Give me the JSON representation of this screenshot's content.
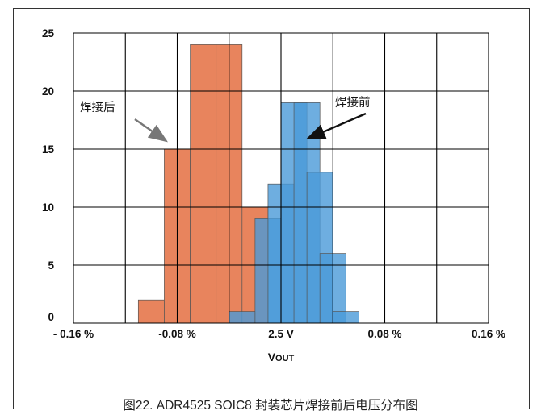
{
  "chart_data": {
    "type": "bar",
    "x_ticks": [
      "- 0.16 %",
      "-0.08 %",
      "2.5 V",
      "0.08 %",
      "0.16 %"
    ],
    "y_ticks": [
      "0",
      "5",
      "10",
      "15",
      "20",
      "25"
    ],
    "xlabel": "VOUT",
    "ylim": [
      0,
      25
    ],
    "grid": true,
    "bin_width_pct": 0.02,
    "series": [
      {
        "name": "焊接后",
        "color": "#e8845d",
        "bins_center_pct": [
          -0.1,
          -0.08,
          -0.06,
          -0.04,
          -0.02
        ],
        "values": [
          2,
          15,
          24,
          24,
          10
        ]
      },
      {
        "name": "焊接前",
        "color": "#4a9ad8",
        "bins_center_pct": [
          -0.03,
          -0.01,
          0.0,
          0.01,
          0.02,
          0.03,
          0.04,
          0.05
        ],
        "values": [
          1,
          9,
          12,
          19,
          19,
          13,
          6,
          1
        ]
      }
    ],
    "annotations": [
      {
        "text": "焊接后",
        "target_series": "焊接后"
      },
      {
        "text": "焊接前",
        "target_series": "焊接前"
      }
    ]
  },
  "caption": "图22. ADR4525 SOIC8 封装芯片焊接前后电压分布图"
}
